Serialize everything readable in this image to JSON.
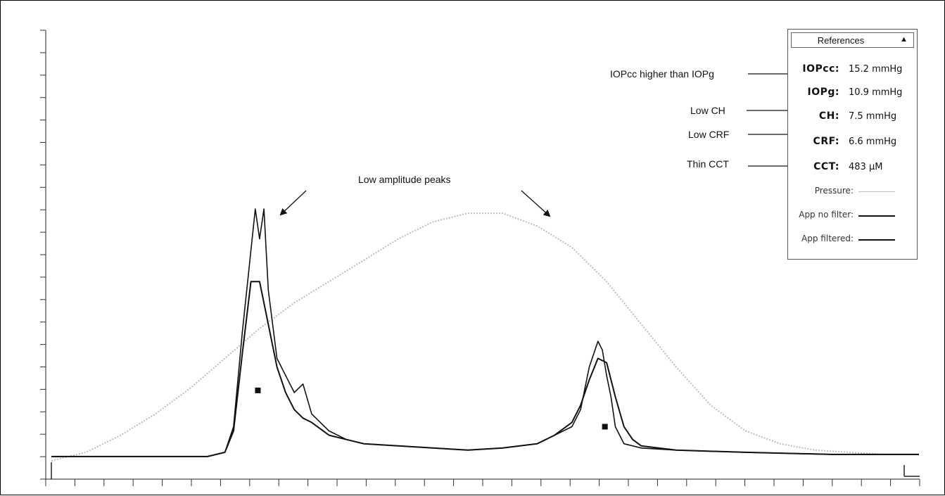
{
  "chart_data": {
    "type": "line",
    "series": [
      {
        "name": "Pressure",
        "color": "#bdbdbd",
        "points": [
          [
            0,
            0
          ],
          [
            4,
            2
          ],
          [
            8,
            6
          ],
          [
            12,
            11
          ],
          [
            16,
            17
          ],
          [
            20,
            24
          ],
          [
            24,
            31
          ],
          [
            28,
            37
          ],
          [
            32,
            42
          ],
          [
            36,
            47
          ],
          [
            40,
            52
          ],
          [
            44,
            56
          ],
          [
            48,
            58
          ],
          [
            52,
            58
          ],
          [
            56,
            55
          ],
          [
            60,
            50
          ],
          [
            64,
            42
          ],
          [
            68,
            32
          ],
          [
            72,
            22
          ],
          [
            76,
            13
          ],
          [
            80,
            7
          ],
          [
            84,
            4
          ],
          [
            88,
            2.5
          ],
          [
            92,
            2
          ],
          [
            96,
            1.5
          ],
          [
            100,
            1.5
          ]
        ]
      },
      {
        "name": "App no filter",
        "color": "#111111",
        "points": [
          [
            0,
            1
          ],
          [
            18,
            1
          ],
          [
            20,
            2
          ],
          [
            21,
            8
          ],
          [
            22,
            30
          ],
          [
            23.5,
            59
          ],
          [
            24,
            52
          ],
          [
            24.5,
            59
          ],
          [
            25,
            40
          ],
          [
            26,
            24
          ],
          [
            27,
            20
          ],
          [
            28,
            16
          ],
          [
            29,
            18
          ],
          [
            30,
            11
          ],
          [
            31,
            9
          ],
          [
            32,
            7
          ],
          [
            34,
            5
          ],
          [
            36,
            4
          ],
          [
            40,
            3.5
          ],
          [
            44,
            3
          ],
          [
            48,
            2.5
          ],
          [
            52,
            3
          ],
          [
            56,
            4
          ],
          [
            58,
            6
          ],
          [
            60,
            8
          ],
          [
            61,
            12
          ],
          [
            62,
            22
          ],
          [
            63,
            28
          ],
          [
            63.5,
            26
          ],
          [
            64,
            20
          ],
          [
            64.5,
            15
          ],
          [
            65,
            8
          ],
          [
            66,
            4
          ],
          [
            68,
            3
          ],
          [
            72,
            2.5
          ],
          [
            80,
            2
          ],
          [
            90,
            1.5
          ],
          [
            100,
            1.5
          ]
        ]
      },
      {
        "name": "App filtered",
        "color": "#111111",
        "points": [
          [
            0,
            1
          ],
          [
            18,
            1
          ],
          [
            20,
            2
          ],
          [
            21,
            7
          ],
          [
            22,
            25
          ],
          [
            23,
            42
          ],
          [
            24,
            42
          ],
          [
            25,
            32
          ],
          [
            26,
            22
          ],
          [
            27,
            16
          ],
          [
            28,
            12
          ],
          [
            29,
            10
          ],
          [
            30,
            9
          ],
          [
            32,
            6
          ],
          [
            34,
            5
          ],
          [
            36,
            4
          ],
          [
            40,
            3.5
          ],
          [
            44,
            3
          ],
          [
            48,
            2.5
          ],
          [
            52,
            3
          ],
          [
            56,
            4
          ],
          [
            58,
            6
          ],
          [
            60,
            9
          ],
          [
            61,
            13
          ],
          [
            62,
            19
          ],
          [
            63,
            24
          ],
          [
            64,
            23
          ],
          [
            65,
            15
          ],
          [
            66,
            8
          ],
          [
            67,
            5
          ],
          [
            68,
            3.5
          ],
          [
            72,
            2.5
          ],
          [
            80,
            2
          ],
          [
            90,
            1.5
          ],
          [
            100,
            1.5
          ]
        ]
      }
    ],
    "markers": [
      [
        23.8,
        16.5
      ],
      [
        63.8,
        8
      ]
    ],
    "xlim": [
      0,
      100
    ],
    "ylim": [
      0,
      60
    ],
    "x_ticks": 30,
    "y_ticks": 20,
    "grid": false,
    "legend": "top-right",
    "annotations": [
      {
        "text": "Low amplitude peaks"
      },
      {
        "text": "IOPcc higher than IOPg"
      },
      {
        "text": "Low CH"
      },
      {
        "text": "Low CRF"
      },
      {
        "text": "Thin CCT"
      }
    ]
  },
  "references": {
    "title": "References",
    "rows": [
      {
        "label": "IOPcc:",
        "value": "15.2 mmHg"
      },
      {
        "label": "IOPg:",
        "value": "10.9 mmHg"
      },
      {
        "label": "CH:",
        "value": "7.5 mmHg"
      },
      {
        "label": "CRF:",
        "value": "6.6 mmHg"
      },
      {
        "label": "CCT:",
        "value": "483 µM"
      }
    ],
    "legend": [
      {
        "label": "Pressure:",
        "color": "#bdbdbd"
      },
      {
        "label": "App no filter:",
        "color": "#111111"
      },
      {
        "label": "App filtered:",
        "color": "#111111"
      }
    ]
  }
}
